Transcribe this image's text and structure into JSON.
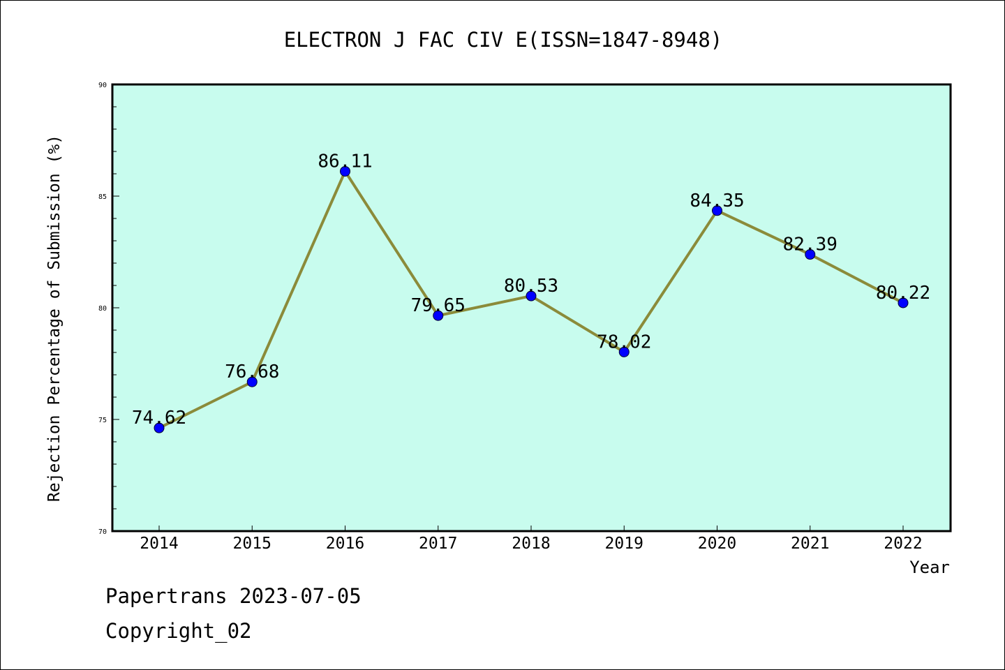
{
  "chart_data": {
    "type": "line",
    "title": "ELECTRON J FAC CIV E(ISSN=1847-8948)",
    "xlabel": "Year",
    "ylabel": "Rejection Percentage of Submission (%)",
    "categories": [
      "2014",
      "2015",
      "2016",
      "2017",
      "2018",
      "2019",
      "2020",
      "2021",
      "2022"
    ],
    "values": [
      74.62,
      76.68,
      86.11,
      79.65,
      80.53,
      78.02,
      84.35,
      82.39,
      80.22
    ],
    "value_labels": [
      "74.62",
      "76.68",
      "86.11",
      "79.65",
      "80.53",
      "78.02",
      "84.35",
      "82.39",
      "80.22"
    ],
    "ylim": [
      70,
      90
    ],
    "yticks": [
      "70",
      "75",
      "80",
      "85",
      "90"
    ],
    "grid": false,
    "colors": {
      "plot_background": "#c8fcee",
      "line": "#8b8b3a",
      "marker": "#0000ff"
    }
  },
  "footer": {
    "line1": "Papertrans 2023-07-05",
    "line2": "Copyright_02"
  }
}
